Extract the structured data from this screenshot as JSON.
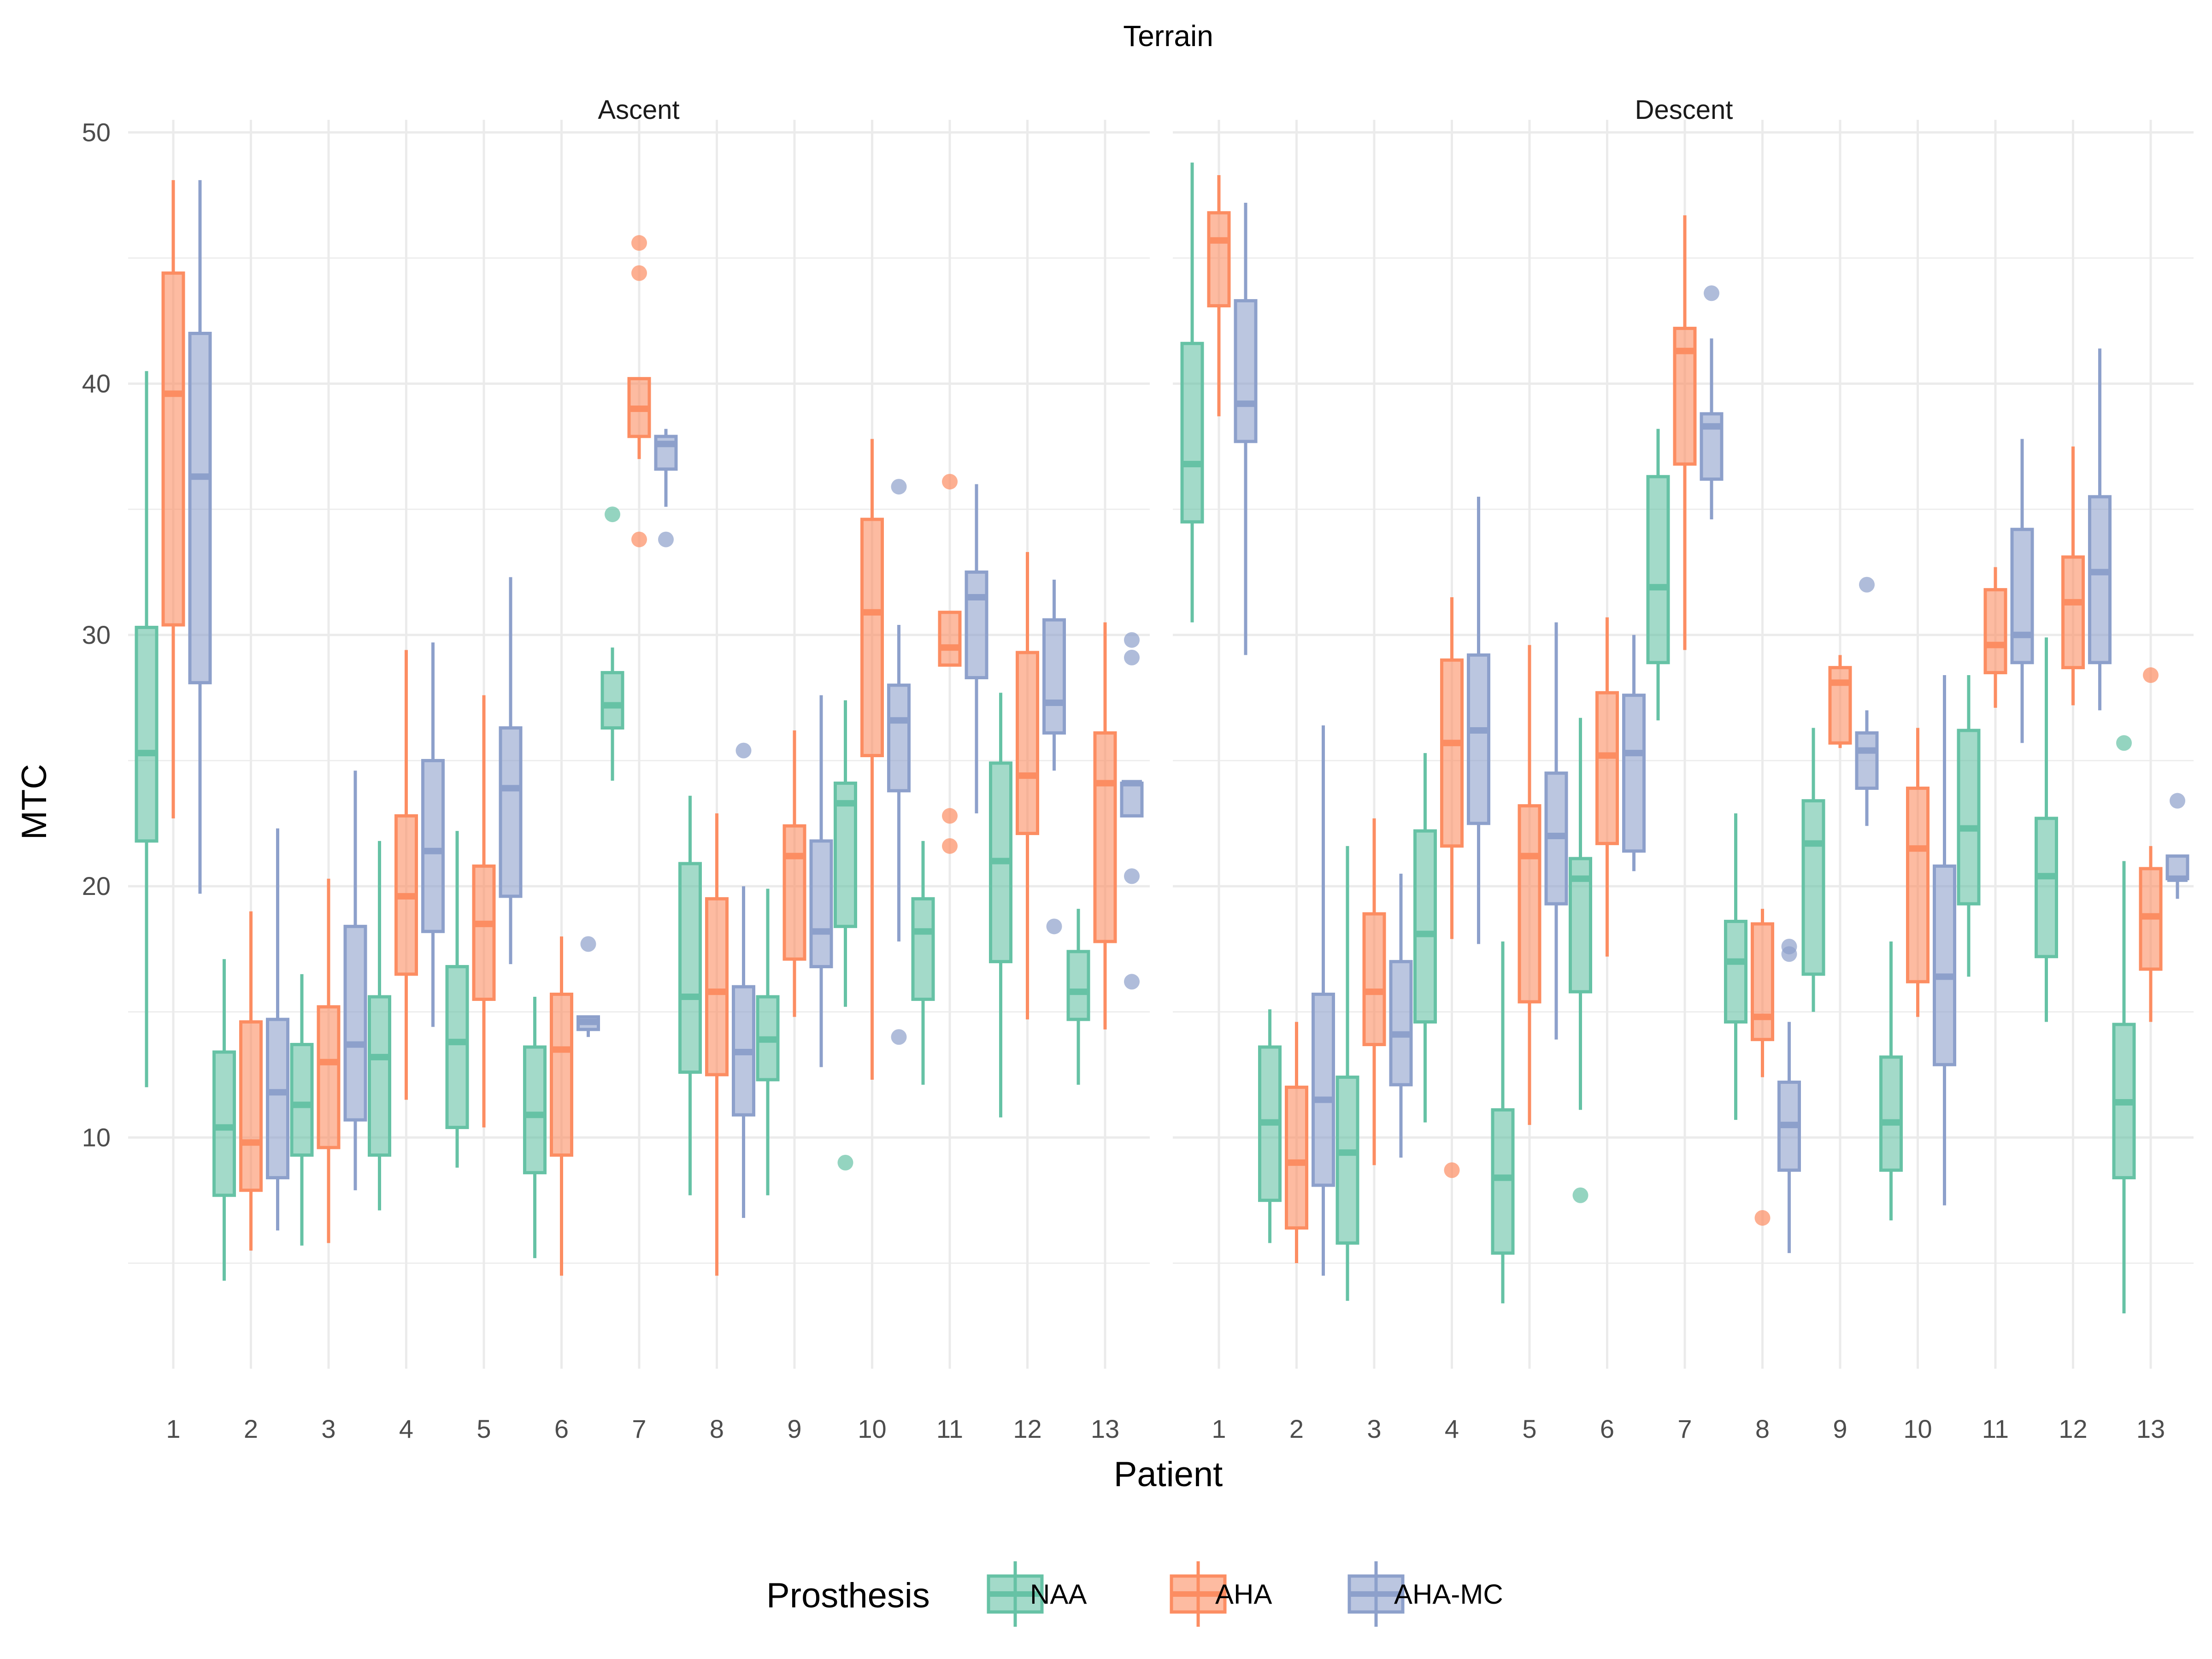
{
  "chart_data": {
    "type": "boxplot",
    "title": "Terrain",
    "xlabel": "Patient",
    "ylabel": "MTC",
    "legend_title": "Prosthesis",
    "legend_position": "bottom",
    "grid": true,
    "ylim": [
      0.8,
      50.5
    ],
    "y_ticks": [
      10,
      20,
      30,
      40,
      50
    ],
    "categories": [
      "1",
      "2",
      "3",
      "4",
      "5",
      "6",
      "7",
      "8",
      "9",
      "10",
      "11",
      "12",
      "13"
    ],
    "series": [
      {
        "name": "NAA",
        "color": "#66c2a5"
      },
      {
        "name": "AHA",
        "color": "#fc8d62"
      },
      {
        "name": "AHA-MC",
        "color": "#8da0cb"
      }
    ],
    "panels": [
      {
        "label": "Ascent",
        "data": {
          "NAA": [
            [
              12.0,
              21.8,
              25.3,
              30.3,
              40.5
            ],
            [
              4.3,
              7.7,
              10.4,
              13.4,
              17.1
            ],
            [
              5.7,
              9.3,
              11.3,
              13.7,
              16.5
            ],
            [
              7.1,
              9.3,
              13.2,
              15.6,
              21.8
            ],
            [
              8.8,
              10.4,
              13.8,
              16.8,
              22.2
            ],
            [
              5.2,
              8.6,
              10.9,
              13.6,
              15.6
            ],
            [
              24.2,
              26.3,
              27.2,
              28.5,
              29.5
            ],
            [
              7.7,
              12.6,
              15.6,
              20.9,
              23.6
            ],
            [
              7.7,
              12.3,
              13.9,
              15.6,
              19.9
            ],
            [
              15.2,
              18.4,
              23.3,
              24.1,
              27.4
            ],
            [
              12.1,
              15.5,
              18.2,
              19.5,
              21.8
            ],
            [
              10.8,
              17.0,
              21.0,
              24.9,
              27.7
            ],
            [
              12.1,
              14.7,
              15.8,
              17.4,
              19.1
            ]
          ],
          "AHA": [
            [
              22.7,
              30.4,
              39.6,
              44.4,
              48.1
            ],
            [
              5.5,
              7.9,
              9.8,
              14.6,
              19.0
            ],
            [
              5.8,
              9.6,
              13.0,
              15.2,
              20.3
            ],
            [
              11.5,
              16.5,
              19.6,
              22.8,
              29.4
            ],
            [
              10.4,
              15.5,
              18.5,
              20.8,
              27.6
            ],
            [
              4.5,
              9.3,
              13.5,
              15.7,
              18.0
            ],
            [
              37.0,
              37.9,
              39.0,
              40.2,
              40.2
            ],
            [
              4.5,
              12.5,
              15.8,
              19.5,
              22.9
            ],
            [
              14.8,
              17.1,
              21.2,
              22.4,
              26.2
            ],
            [
              12.3,
              25.2,
              30.9,
              34.6,
              37.8
            ],
            [
              28.8,
              28.8,
              29.5,
              30.9,
              30.9
            ],
            [
              14.7,
              22.1,
              24.4,
              29.3,
              33.3
            ],
            [
              14.3,
              17.8,
              24.1,
              26.1,
              30.5
            ]
          ],
          "AHA-MC": [
            [
              19.7,
              28.1,
              36.3,
              42.0,
              48.1
            ],
            [
              6.3,
              8.4,
              11.8,
              14.7,
              22.3
            ],
            [
              7.9,
              10.7,
              13.7,
              18.4,
              24.6
            ],
            [
              14.4,
              18.2,
              21.4,
              25.0,
              29.7
            ],
            [
              16.9,
              19.6,
              23.9,
              26.3,
              32.3
            ],
            [
              14.0,
              14.3,
              14.6,
              14.8,
              14.8
            ],
            [
              35.1,
              36.6,
              37.6,
              37.9,
              38.2
            ],
            [
              6.8,
              10.9,
              13.4,
              16.0,
              20.0
            ],
            [
              12.8,
              16.8,
              18.2,
              21.8,
              27.6
            ],
            [
              17.8,
              23.8,
              26.6,
              28.0,
              30.4
            ],
            [
              22.9,
              28.3,
              31.5,
              32.5,
              36.0
            ],
            [
              24.6,
              26.1,
              27.3,
              30.6,
              32.2
            ],
            [
              22.8,
              22.8,
              24.1,
              24.1,
              24.1
            ]
          ],
          "outliers": {
            "NAA": [
              [
                7,
                34.8
              ],
              [
                10,
                9.0
              ]
            ],
            "AHA": [
              [
                7,
                45.6
              ],
              [
                7,
                44.4
              ],
              [
                7,
                33.8
              ],
              [
                11,
                36.1
              ],
              [
                11,
                22.8
              ],
              [
                11,
                21.6
              ]
            ],
            "AHA-MC": [
              [
                6,
                17.7
              ],
              [
                7,
                33.8
              ],
              [
                8,
                25.4
              ],
              [
                10,
                35.9
              ],
              [
                10,
                14.0
              ],
              [
                12,
                18.4
              ],
              [
                13,
                29.8
              ],
              [
                13,
                29.1
              ],
              [
                13,
                20.4
              ],
              [
                13,
                16.2
              ]
            ]
          }
        }
      },
      {
        "label": "Descent",
        "data": {
          "NAA": [
            [
              30.5,
              34.5,
              36.8,
              41.6,
              48.8
            ],
            [
              5.8,
              7.5,
              10.6,
              13.6,
              15.1
            ],
            [
              3.5,
              5.8,
              9.4,
              12.4,
              21.6
            ],
            [
              10.6,
              14.6,
              18.1,
              22.2,
              25.3
            ],
            [
              3.4,
              5.4,
              8.4,
              11.1,
              17.8
            ],
            [
              11.1,
              15.8,
              20.3,
              21.1,
              26.7
            ],
            [
              26.6,
              28.9,
              31.9,
              36.3,
              38.2
            ],
            [
              10.7,
              14.6,
              17.0,
              18.6,
              22.9
            ],
            [
              15.0,
              16.5,
              21.7,
              23.4,
              26.3
            ],
            [
              6.7,
              8.7,
              10.6,
              13.2,
              17.8
            ],
            [
              16.4,
              19.3,
              22.3,
              26.2,
              28.4
            ],
            [
              14.6,
              17.2,
              20.4,
              22.7,
              29.9
            ],
            [
              3.0,
              8.4,
              11.4,
              14.5,
              21.0
            ]
          ],
          "AHA": [
            [
              38.7,
              43.1,
              45.7,
              46.8,
              48.3
            ],
            [
              5.0,
              6.4,
              9.0,
              12.0,
              14.6
            ],
            [
              8.9,
              13.7,
              15.8,
              18.9,
              22.7
            ],
            [
              17.9,
              21.6,
              25.7,
              29.0,
              31.5
            ],
            [
              10.5,
              15.4,
              21.2,
              23.2,
              29.6
            ],
            [
              17.2,
              21.7,
              25.2,
              27.7,
              30.7
            ],
            [
              29.4,
              36.8,
              41.3,
              42.2,
              46.7
            ],
            [
              12.4,
              13.9,
              14.8,
              18.5,
              19.1
            ],
            [
              25.5,
              25.7,
              28.1,
              28.7,
              29.2
            ],
            [
              14.8,
              16.2,
              21.5,
              23.9,
              26.3
            ],
            [
              27.1,
              28.5,
              29.6,
              31.8,
              32.7
            ],
            [
              27.2,
              28.7,
              31.3,
              33.1,
              37.5
            ],
            [
              14.6,
              16.7,
              18.8,
              20.7,
              21.6
            ]
          ],
          "AHA-MC": [
            [
              29.2,
              37.7,
              39.2,
              43.3,
              47.2
            ],
            [
              4.5,
              8.1,
              11.5,
              15.7,
              26.4
            ],
            [
              9.2,
              12.1,
              14.1,
              17.0,
              20.5
            ],
            [
              17.7,
              22.5,
              26.2,
              29.2,
              35.5
            ],
            [
              13.9,
              19.3,
              22.0,
              24.5,
              30.5
            ],
            [
              20.6,
              21.4,
              25.3,
              27.6,
              30.0
            ],
            [
              34.6,
              36.2,
              38.3,
              38.8,
              41.8
            ],
            [
              5.4,
              8.7,
              10.5,
              12.2,
              14.6
            ],
            [
              22.4,
              23.9,
              25.4,
              26.1,
              27.0
            ],
            [
              7.3,
              12.9,
              16.4,
              20.8,
              28.4
            ],
            [
              25.7,
              28.9,
              30.0,
              34.2,
              37.8
            ],
            [
              27.0,
              28.9,
              32.5,
              35.5,
              41.4
            ],
            [
              19.5,
              20.3,
              20.3,
              21.2,
              21.2
            ]
          ],
          "outliers": {
            "NAA": [
              [
                6,
                7.7
              ],
              [
                13,
                25.7
              ]
            ],
            "AHA": [
              [
                4,
                8.7
              ],
              [
                8,
                6.8
              ],
              [
                13,
                28.4
              ]
            ],
            "AHA-MC": [
              [
                7,
                43.6
              ],
              [
                8,
                17.6
              ],
              [
                8,
                17.3
              ],
              [
                9,
                32.0
              ],
              [
                13,
                23.4
              ]
            ]
          }
        }
      }
    ]
  }
}
